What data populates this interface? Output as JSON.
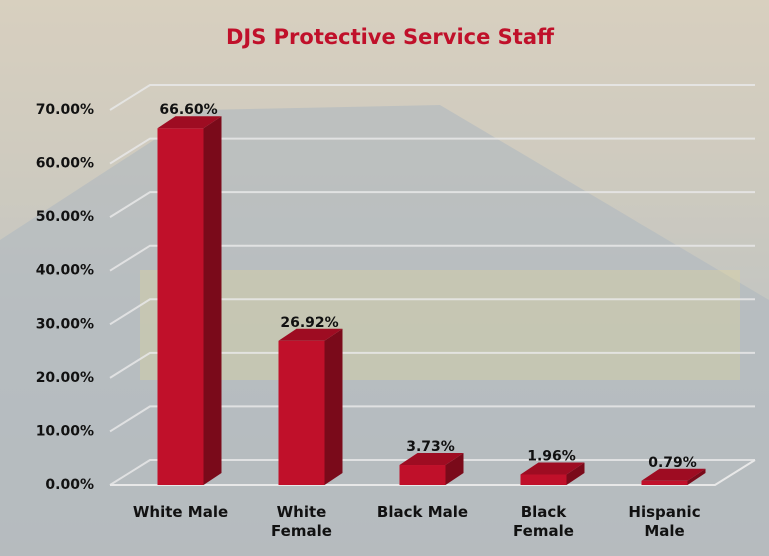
{
  "chart_data": {
    "type": "bar3d",
    "title": "DJS Protective Service Staff",
    "categories": [
      "White Male",
      "White Female",
      "Black Male",
      "Black Female",
      "Hispanic Male"
    ],
    "values": [
      66.6,
      26.92,
      3.73,
      1.96,
      0.79
    ],
    "value_labels": [
      "66.60%",
      "26.92%",
      "3.73%",
      "1.96%",
      "0.79%"
    ],
    "color": "#c0102a",
    "ylim": [
      0,
      70
    ],
    "yticks": [
      {
        "value": 0,
        "label": "0.00%"
      },
      {
        "value": 10,
        "label": "10.00%"
      },
      {
        "value": 20,
        "label": "20.00%"
      },
      {
        "value": 30,
        "label": "30.00%"
      },
      {
        "value": 40,
        "label": "40.00%"
      },
      {
        "value": 50,
        "label": "50.00%"
      },
      {
        "value": 60,
        "label": "60.00%"
      },
      {
        "value": 70,
        "label": "70.00%"
      }
    ],
    "grid": true
  }
}
